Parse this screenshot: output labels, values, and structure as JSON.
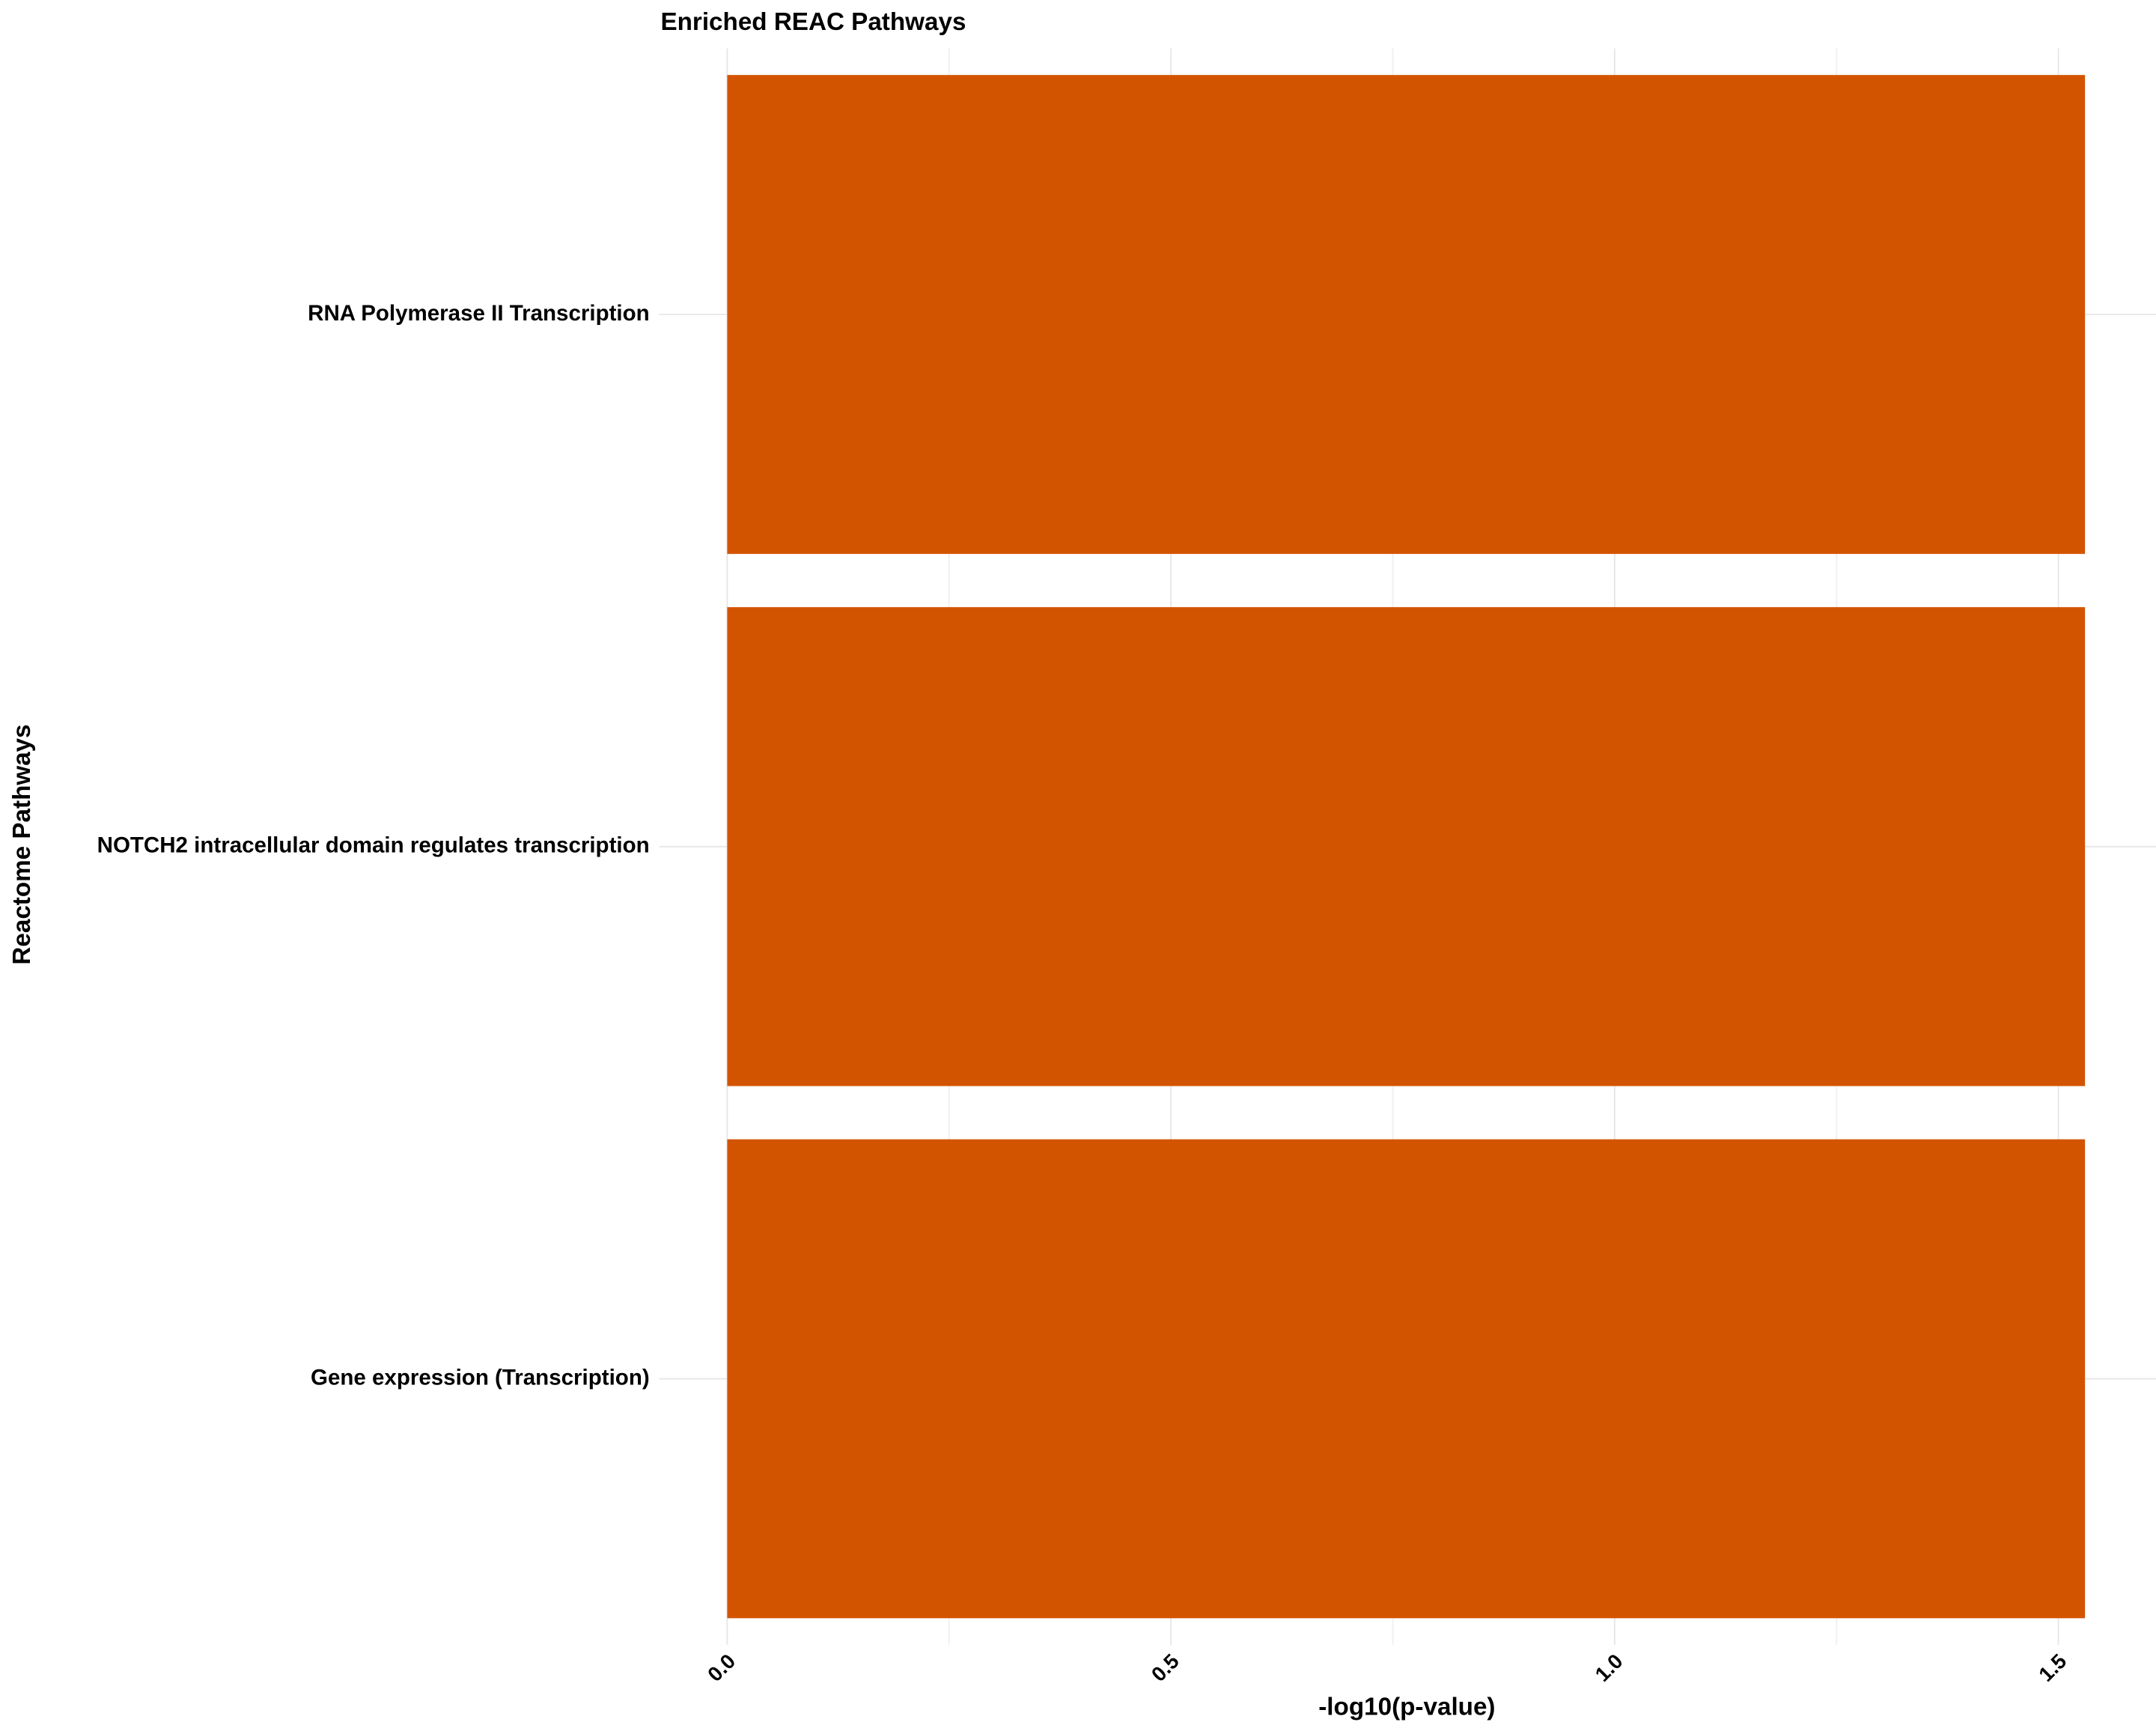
{
  "chart_data": {
    "type": "barh",
    "title": "Enriched REAC Pathways",
    "x_label": "-log10(p-value)",
    "y_label": "Reactome Pathways",
    "categories": [
      "RNA Polymerase II Transcription",
      "NOTCH2 intracellular domain regulates transcription",
      "Gene expression (Transcription)"
    ],
    "values": [
      1.53,
      1.53,
      1.53
    ],
    "color": "#d35400",
    "xlim": [
      -0.0766,
      1.61
    ],
    "xticks": [
      {
        "value": 0,
        "label": "0.0"
      },
      0.5,
      {
        "value": 1,
        "label": "1.0"
      },
      1.5
    ],
    "x_minor_ticks": [
      0.25,
      0.75,
      1.25
    ],
    "grid": true
  }
}
